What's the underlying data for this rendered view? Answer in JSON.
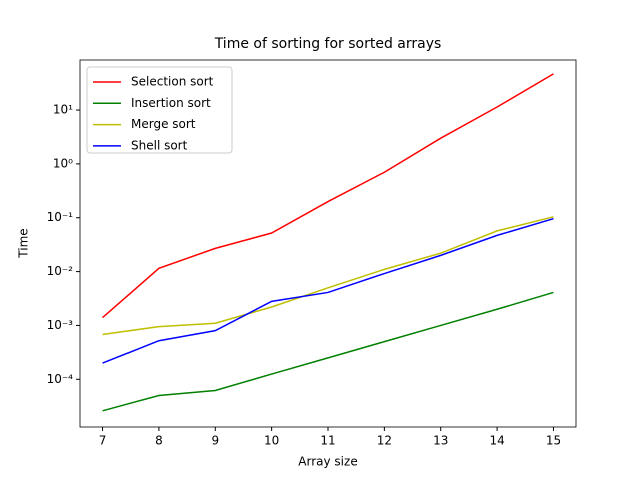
{
  "chart_data": {
    "type": "line",
    "title": "Time of sorting for sorted arrays",
    "x_label": "Array size",
    "y_label": "Time",
    "log_y": true,
    "legend": "upper left",
    "x": [
      7,
      8,
      9,
      10,
      11,
      12,
      13,
      14,
      15
    ],
    "xlim": [
      6.6,
      15.4
    ],
    "xticks": [
      7,
      8,
      9,
      10,
      11,
      12,
      13,
      14,
      15
    ],
    "ylim": [
      1.3e-05,
      85
    ],
    "yticks": [
      {
        "value": 0.0001,
        "label": "10⁻⁴"
      },
      {
        "value": 0.001,
        "label": "10⁻³"
      },
      {
        "value": 0.01,
        "label": "10⁻²"
      },
      {
        "value": 0.1,
        "label": "10⁻¹"
      },
      {
        "value": 1,
        "label": "10⁰"
      },
      {
        "value": 10,
        "label": "10¹"
      }
    ],
    "series": [
      {
        "name": "Selection sort",
        "color": "#ff0000",
        "values": [
          0.0014,
          0.0115,
          0.027,
          0.052,
          0.2,
          0.7,
          3.0,
          11.4,
          47
        ]
      },
      {
        "name": "Insertion sort",
        "color": "#008000",
        "values": [
          2.6e-05,
          5e-05,
          6.2e-05,
          0.000125,
          0.00025,
          0.0005,
          0.001,
          0.002,
          0.0041
        ]
      },
      {
        "name": "Merge sort",
        "color": "#bfbf00",
        "values": [
          0.00068,
          0.00095,
          0.0011,
          0.0022,
          0.005,
          0.011,
          0.022,
          0.057,
          0.104
        ]
      },
      {
        "name": "Shell sort",
        "color": "#0000ff",
        "values": [
          0.0002,
          0.00052,
          0.0008,
          0.0028,
          0.0041,
          0.0092,
          0.02,
          0.047,
          0.096
        ]
      }
    ]
  }
}
